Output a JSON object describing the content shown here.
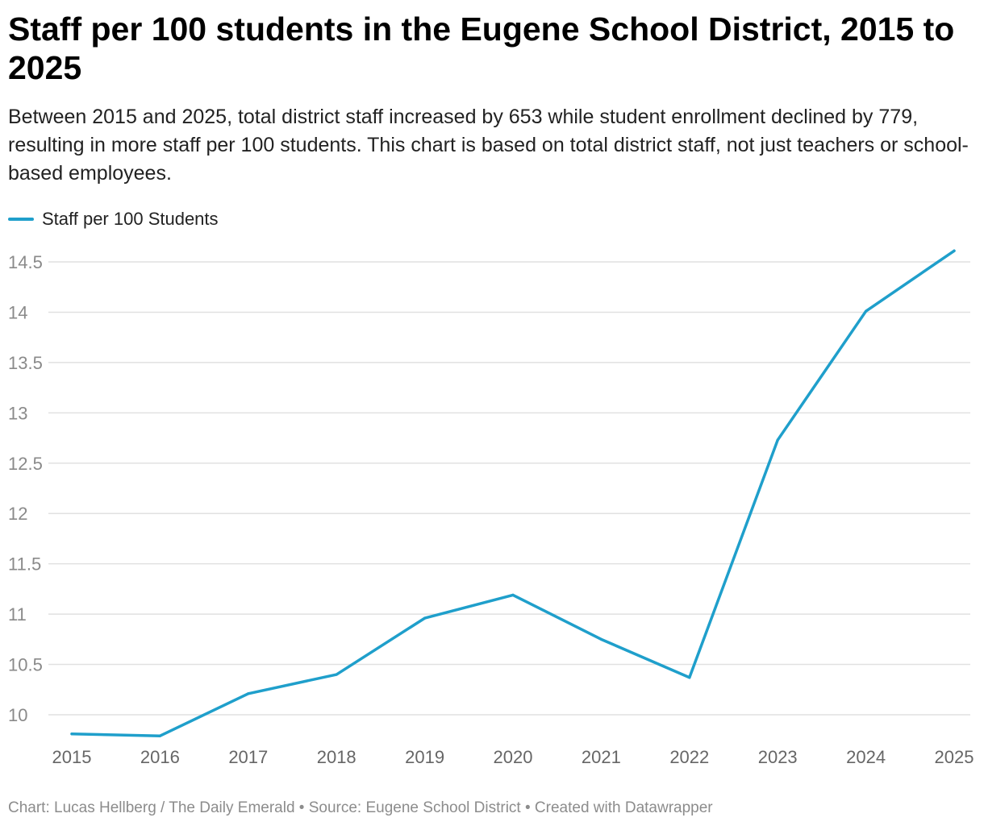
{
  "header": {
    "title": "Staff per 100 students in the Eugene School District, 2015 to 2025",
    "subtitle": "Between 2015 and 2025, total district staff increased by 653 while student enrollment declined by 779, resulting in more staff per 100 students. This chart is based on total district staff, not just teachers or school-based employees."
  },
  "legend": {
    "label": "Staff per 100 Students"
  },
  "colors": {
    "line": "#1f9fcb",
    "grid": "#e1e1e1"
  },
  "chart_data": {
    "type": "line",
    "title": "Staff per 100 students in the Eugene School District, 2015 to 2025",
    "xlabel": "",
    "ylabel": "",
    "x": [
      "2015",
      "2016",
      "2017",
      "2018",
      "2019",
      "2020",
      "2021",
      "2022",
      "2023",
      "2024",
      "2025"
    ],
    "series": [
      {
        "name": "Staff per 100 Students",
        "values": [
          9.81,
          9.79,
          10.21,
          10.4,
          10.96,
          11.19,
          10.75,
          10.37,
          12.73,
          14.01,
          14.61
        ]
      }
    ],
    "ylim": [
      9.7,
      14.7
    ],
    "yticks": [
      "10",
      "10.5",
      "11",
      "11.5",
      "12",
      "12.5",
      "13",
      "13.5",
      "14",
      "14.5"
    ],
    "grid": true,
    "legend_position": "top-left"
  },
  "footer": {
    "text": "Chart: Lucas Hellberg / The Daily Emerald • Source: Eugene School District  • Created with Datawrapper"
  }
}
